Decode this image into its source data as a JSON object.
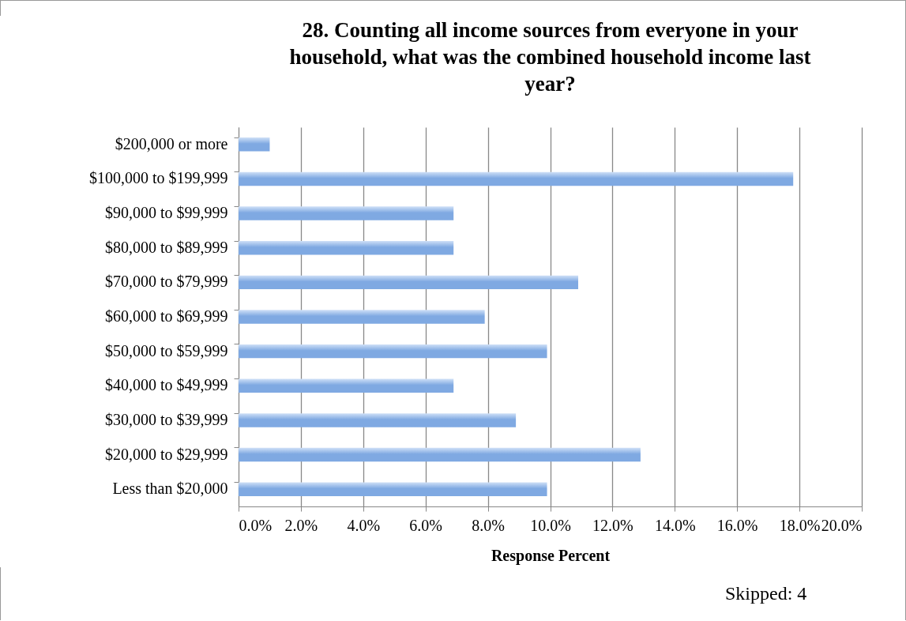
{
  "chart_data": {
    "type": "bar",
    "orientation": "horizontal",
    "title": "28. Counting all income sources from everyone in your household, what was the combined household income last year?",
    "xlabel": "Response Percent",
    "categories": [
      "$200,000 or more",
      "$100,000 to $199,999",
      "$90,000 to $99,999",
      "$80,000 to $89,999",
      "$70,000 to $79,999",
      "$60,000 to $69,999",
      "$50,000 to $59,999",
      "$40,000 to $49,999",
      "$30,000 to $39,999",
      "$20,000 to $29,999",
      "Less than $20,000"
    ],
    "values": [
      1.0,
      17.8,
      6.9,
      6.9,
      10.9,
      7.9,
      9.9,
      6.9,
      8.9,
      12.9,
      9.9
    ],
    "color": "#7fa9e2",
    "xlim": [
      0,
      20
    ],
    "xticks": [
      {
        "value": 0,
        "label": "0.0%"
      },
      {
        "value": 2,
        "label": "2.0%"
      },
      {
        "value": 4,
        "label": "4.0%"
      },
      {
        "value": 6,
        "label": "6.0%"
      },
      {
        "value": 8,
        "label": "8.0%"
      },
      {
        "value": 10,
        "label": "10.0%"
      },
      {
        "value": 12,
        "label": "12.0%"
      },
      {
        "value": 14,
        "label": "14.0%"
      },
      {
        "value": 16,
        "label": "16.0%"
      },
      {
        "value": 18,
        "label": "18.0%"
      },
      {
        "value": 20,
        "label": "20.0%"
      }
    ],
    "grid": "x",
    "annotations": [
      "Skipped: 4"
    ]
  }
}
